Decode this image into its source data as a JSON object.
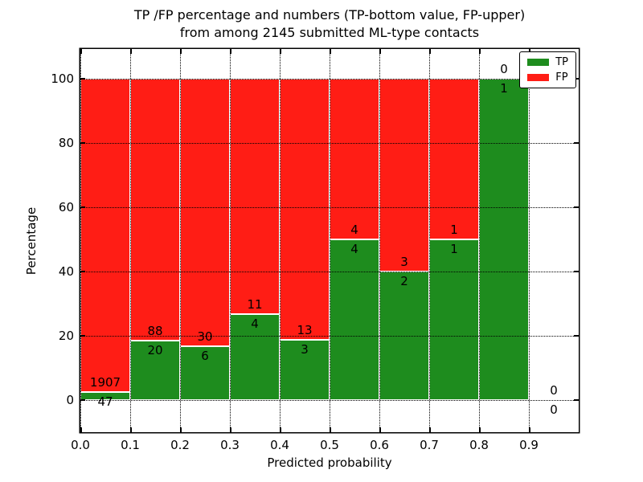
{
  "figure": {
    "title_line1": "TP /FP percentage and numbers (TP-bottom value, FP-upper)",
    "title_line2": "from among 2145 submitted ML-type contacts"
  },
  "chart_data": {
    "type": "bar",
    "stacked": true,
    "normalized_to_percent": true,
    "title": "TP /FP percentage and numbers (TP-bottom value, FP-upper) from among 2145 submitted ML-type contacts",
    "xlabel": "Predicted probability",
    "ylabel": "Percentage",
    "x_ticks": [
      "0.0",
      "0.1",
      "0.2",
      "0.3",
      "0.4",
      "0.5",
      "0.6",
      "0.7",
      "0.8",
      "0.9"
    ],
    "y_ticks": [
      0,
      20,
      40,
      60,
      80,
      100
    ],
    "xlim": [
      0.0,
      1.0
    ],
    "ylim": [
      -10,
      110
    ],
    "grid": "dotted",
    "legend_position": "upper right",
    "categories": [
      "0.0-0.1",
      "0.1-0.2",
      "0.2-0.3",
      "0.3-0.4",
      "0.4-0.5",
      "0.5-0.6",
      "0.6-0.7",
      "0.7-0.8",
      "0.8-0.9",
      "0.9-1.0"
    ],
    "series": [
      {
        "name": "TP",
        "color": "#1e8c1e",
        "counts": [
          47,
          20,
          6,
          4,
          3,
          4,
          2,
          1,
          1,
          0
        ],
        "percent": [
          2.4,
          18.5,
          16.7,
          26.7,
          18.8,
          50,
          40,
          50,
          100,
          0
        ]
      },
      {
        "name": "FP",
        "color": "#ff1d15",
        "counts": [
          1907,
          88,
          30,
          11,
          13,
          4,
          3,
          1,
          0,
          0
        ],
        "percent": [
          97.6,
          81.5,
          83.3,
          73.3,
          81.2,
          50,
          60,
          50,
          0,
          0
        ]
      }
    ],
    "bar_labels": {
      "fp_upper": [
        "1907",
        "88",
        "30",
        "11",
        "13",
        "4",
        "3",
        "1",
        "0",
        "0"
      ],
      "tp_lower": [
        "47",
        "20",
        "6",
        "4",
        "3",
        "4",
        "2",
        "1",
        "1",
        "0"
      ]
    }
  },
  "legend": {
    "items": [
      {
        "label": "TP",
        "color": "#1e8c1e"
      },
      {
        "label": "FP",
        "color": "#ff1d15"
      }
    ]
  },
  "colors": {
    "tp_green": "#1e8c1e",
    "fp_red": "#ff1d15",
    "axis": "#000000",
    "background": "#ffffff"
  }
}
